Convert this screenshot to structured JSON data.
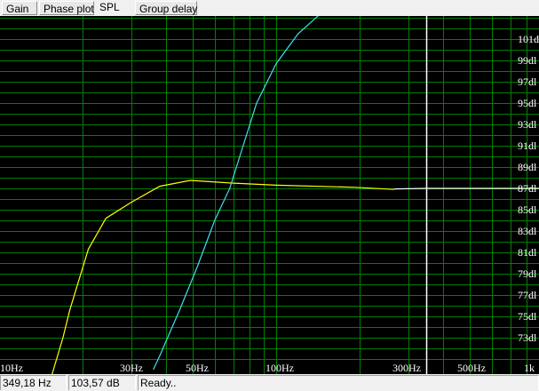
{
  "tabs": [
    {
      "label": "Gain",
      "selected": false
    },
    {
      "label": "Phase plot",
      "selected": false
    },
    {
      "label": "SPL",
      "selected": true
    },
    {
      "label": "Group delay",
      "selected": false
    }
  ],
  "status": {
    "frequency": "349,18 Hz",
    "level": "103,57 dB",
    "message": "Ready.."
  },
  "colors": {
    "grid": "#008000",
    "background": "#000000",
    "curve_1": "#ffff00",
    "curve_2": "#40e0f0",
    "cursor": "#ffffff"
  },
  "chart_data": {
    "type": "line",
    "x_scale": "log",
    "xlim": [
      10,
      900
    ],
    "ylim": [
      70.9,
      103.2
    ],
    "grid": true,
    "x_ticks": [
      "10Hz",
      "30Hz",
      "50Hz",
      "100Hz",
      "300Hz",
      "500Hz",
      "1k"
    ],
    "y_ticks": [
      "101d",
      "99dl",
      "97dl",
      "95dl",
      "93dl",
      "91dl",
      "89dl",
      "87dl",
      "85dl",
      "83dl",
      "81dl",
      "79dl",
      "77dl",
      "75dl",
      "73dl"
    ],
    "cursor_hz": 349.18,
    "series": [
      {
        "color": "#ffff00",
        "points": [
          [
            15.5,
            69.5
          ],
          [
            17,
            73
          ],
          [
            18,
            75.6
          ],
          [
            21,
            81.3
          ],
          [
            24.3,
            84.2
          ],
          [
            30,
            85.7
          ],
          [
            38,
            87.2
          ],
          [
            49,
            87.75
          ],
          [
            69,
            87.5
          ],
          [
            100,
            87.3
          ],
          [
            193,
            87.1
          ],
          [
            267,
            86.9
          ]
        ]
      },
      {
        "color": "#ffffff",
        "points": [
          [
            267,
            86.95
          ],
          [
            349,
            87.0
          ],
          [
            900,
            87.0
          ]
        ]
      },
      {
        "color": "#40e0f0",
        "points": [
          [
            36,
            70
          ],
          [
            38,
            71.3
          ],
          [
            45,
            75.7
          ],
          [
            52,
            79.7
          ],
          [
            60,
            84
          ],
          [
            68,
            87
          ],
          [
            76,
            91
          ],
          [
            85,
            95
          ],
          [
            100,
            98.7
          ],
          [
            120,
            101.5
          ],
          [
            142,
            103.2
          ]
        ]
      }
    ]
  }
}
